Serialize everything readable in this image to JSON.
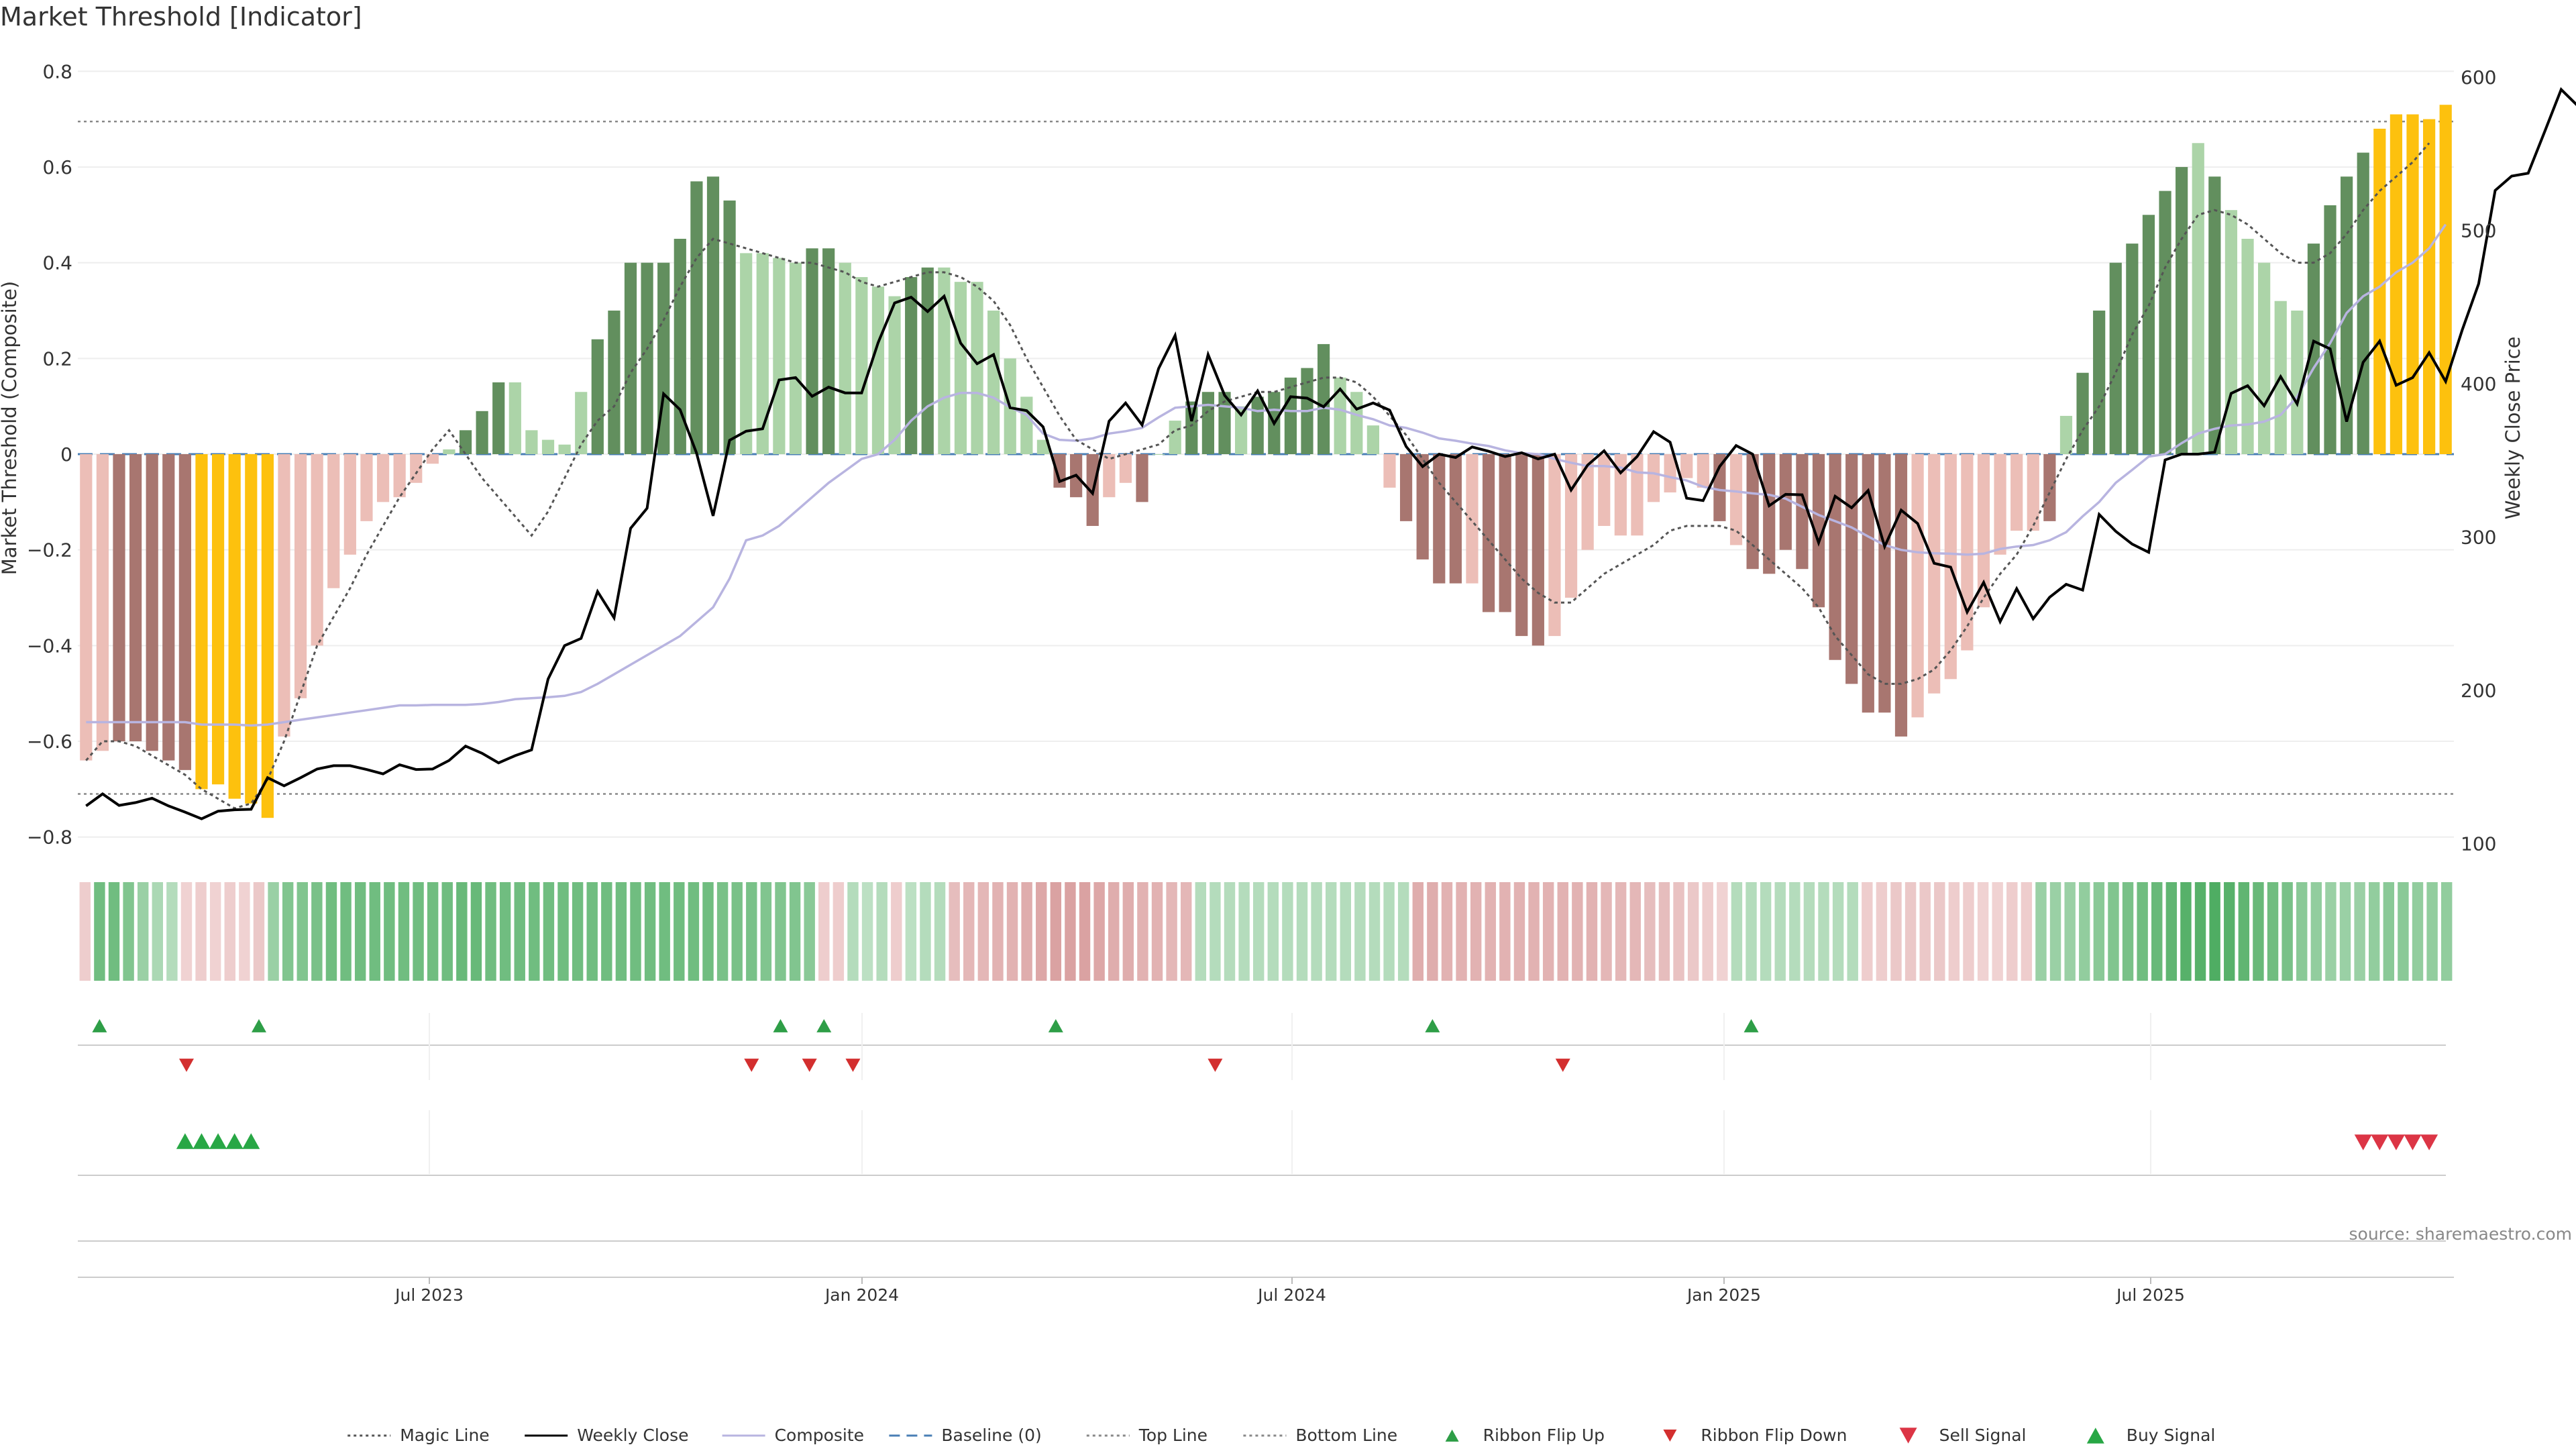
{
  "chart_data": {
    "type": "bar",
    "title": "Market Threshold [Indicator]",
    "ylabel": "Market Threshold (Composite)",
    "y2label": "Weekly Close Price",
    "ylim": [
      -0.82,
      0.82
    ],
    "y2lim": [
      98,
      610
    ],
    "yticks": [
      "0.8",
      "0.6",
      "0.4",
      "0.2",
      "0",
      "−0.2",
      "−0.4",
      "−0.6",
      "−0.8"
    ],
    "y2ticks": [
      "600",
      "500",
      "400",
      "300",
      "200",
      "100"
    ],
    "xticks": [
      "Jul 2023",
      "Jan 2024",
      "Jul 2024",
      "Jan 2025",
      "Jul 2025"
    ],
    "source": "source: sharemaestro.com",
    "top_line": 0.695,
    "bottom_line": -0.71,
    "grid": true,
    "legend_position": "bottom-center",
    "legend": [
      {
        "label": "Magic Line",
        "kind": "dotted-line",
        "color": "#555555"
      },
      {
        "label": "Weekly Close",
        "kind": "solid-line",
        "color": "#000000"
      },
      {
        "label": "Composite",
        "kind": "solid-line",
        "color": "#b8b4e0"
      },
      {
        "label": "Baseline (0)",
        "kind": "dashed-line",
        "color": "#4a7fb5"
      },
      {
        "label": "Top Line",
        "kind": "dotted-line",
        "color": "#888888"
      },
      {
        "label": "Bottom Line",
        "kind": "dotted-line",
        "color": "#888888"
      },
      {
        "label": "Ribbon Flip Up",
        "kind": "triangle-up",
        "color": "#2e9e47"
      },
      {
        "label": "Ribbon Flip Down",
        "kind": "triangle-down",
        "color": "#d32f2f"
      },
      {
        "label": "Sell Signal",
        "kind": "triangle-down-large",
        "color": "#dc3545"
      },
      {
        "label": "Buy Signal",
        "kind": "triangle-up-large",
        "color": "#28a745"
      }
    ],
    "colors": {
      "pos_strong": "#628f5e",
      "pos_light": "#acd4a8",
      "neg_strong": "#a87670",
      "neg_light": "#ecbeb7",
      "extreme": "#fdc10e",
      "composite": "#b8b4e0",
      "close": "#000000",
      "magic": "#555555",
      "baseline": "#4a7fb5"
    },
    "series": [
      {
        "name": "Market Threshold",
        "values": [
          -0.64,
          -0.62,
          -0.6,
          -0.6,
          -0.62,
          -0.64,
          -0.66,
          -0.7,
          -0.69,
          -0.72,
          -0.73,
          -0.76,
          -0.59,
          -0.51,
          -0.4,
          -0.28,
          -0.21,
          -0.14,
          -0.1,
          -0.09,
          -0.06,
          -0.02,
          0.01,
          0.05,
          0.09,
          0.15,
          0.15,
          0.05,
          0.03,
          0.02,
          0.13,
          0.24,
          0.3,
          0.4,
          0.4,
          0.4,
          0.45,
          0.57,
          0.58,
          0.53,
          0.42,
          0.42,
          0.41,
          0.4,
          0.43,
          0.43,
          0.4,
          0.37,
          0.35,
          0.33,
          0.37,
          0.39,
          0.39,
          0.36,
          0.36,
          0.3,
          0.2,
          0.12,
          0.03,
          -0.07,
          -0.09,
          -0.15,
          -0.09,
          -0.06,
          -0.1,
          0.0,
          0.07,
          0.11,
          0.13,
          0.13,
          0.1,
          0.12,
          0.13,
          0.16,
          0.18,
          0.23,
          0.16,
          0.13,
          0.06,
          -0.07,
          -0.14,
          -0.22,
          -0.27,
          -0.27,
          -0.27,
          -0.33,
          -0.33,
          -0.38,
          -0.4,
          -0.38,
          -0.3,
          -0.2,
          -0.15,
          -0.17,
          -0.17,
          -0.1,
          -0.08,
          -0.05,
          -0.07,
          -0.14,
          -0.19,
          -0.24,
          -0.25,
          -0.2,
          -0.24,
          -0.32,
          -0.43,
          -0.48,
          -0.54,
          -0.54,
          -0.59,
          -0.55,
          -0.5,
          -0.47,
          -0.41,
          -0.32,
          -0.21,
          -0.16,
          -0.16,
          -0.14,
          0.08,
          0.17,
          0.3,
          0.4,
          0.44,
          0.5,
          0.55,
          0.6,
          0.65,
          0.58,
          0.51,
          0.45,
          0.4,
          0.32,
          0.3,
          0.44,
          0.52,
          0.58,
          0.63,
          0.68,
          0.71,
          0.71,
          0.7,
          0.73
        ]
      },
      {
        "name": "Weekly Close",
        "values": [
          -0.735,
          -0.71,
          -0.734,
          -0.728,
          -0.719,
          -0.735,
          -0.748,
          -0.762,
          -0.746,
          -0.743,
          -0.742,
          -0.676,
          -0.693,
          -0.676,
          -0.658,
          -0.651,
          -0.651,
          -0.659,
          -0.668,
          -0.649,
          -0.659,
          -0.658,
          -0.64,
          -0.61,
          -0.625,
          -0.645,
          -0.63,
          -0.618,
          -0.47,
          -0.4,
          -0.385,
          -0.287,
          -0.342,
          -0.155,
          -0.113,
          0.126,
          0.093,
          0.002,
          -0.129,
          0.029,
          0.048,
          0.053,
          0.155,
          0.16,
          0.121,
          0.14,
          0.128,
          0.128,
          0.233,
          0.316,
          0.328,
          0.298,
          0.33,
          0.232,
          0.189,
          0.208,
          0.097,
          0.091,
          0.057,
          -0.057,
          -0.044,
          -0.082,
          0.069,
          0.107,
          0.061,
          0.179,
          0.248,
          0.069,
          0.208,
          0.123,
          0.082,
          0.132,
          0.064,
          0.12,
          0.117,
          0.099,
          0.136,
          0.094,
          0.107,
          0.092,
          0.016,
          -0.026,
          0.0,
          -0.007,
          0.015,
          0.006,
          -0.005,
          0.003,
          -0.01,
          0.0,
          -0.075,
          -0.023,
          0.007,
          -0.039,
          -0.005,
          0.047,
          0.025,
          -0.092,
          -0.097,
          -0.026,
          0.018,
          0.0,
          -0.108,
          -0.084,
          -0.085,
          -0.185,
          -0.088,
          -0.112,
          -0.076,
          -0.193,
          -0.117,
          -0.145,
          -0.228,
          -0.236,
          -0.33,
          -0.268,
          -0.35,
          -0.281,
          -0.344,
          -0.299,
          -0.272,
          -0.284,
          -0.126,
          -0.161,
          -0.188,
          -0.205,
          -0.012,
          0.0,
          0.0,
          0.004,
          0.127,
          0.143,
          0.101,
          0.162,
          0.105,
          0.236,
          0.22,
          0.068,
          0.192,
          0.236,
          0.144,
          0.16,
          0.212,
          0.152,
          0.259,
          0.356,
          0.551,
          0.581,
          0.587,
          0.674,
          0.762,
          0.728,
          0.734,
          0.725,
          0.702,
          0.733
        ]
      },
      {
        "name": "Magic Line",
        "values": [
          -0.64,
          -0.6,
          -0.6,
          -0.61,
          -0.63,
          -0.65,
          -0.67,
          -0.7,
          -0.72,
          -0.74,
          -0.73,
          -0.68,
          -0.6,
          -0.5,
          -0.4,
          -0.34,
          -0.28,
          -0.21,
          -0.15,
          -0.09,
          -0.04,
          0.01,
          0.05,
          0.0,
          -0.05,
          -0.09,
          -0.13,
          -0.17,
          -0.12,
          -0.05,
          0.02,
          0.07,
          0.1,
          0.17,
          0.22,
          0.28,
          0.35,
          0.41,
          0.45,
          0.44,
          0.43,
          0.42,
          0.41,
          0.4,
          0.4,
          0.39,
          0.38,
          0.36,
          0.35,
          0.36,
          0.37,
          0.38,
          0.38,
          0.37,
          0.35,
          0.32,
          0.27,
          0.2,
          0.14,
          0.08,
          0.03,
          0.01,
          -0.01,
          0.0,
          0.01,
          0.02,
          0.05,
          0.06,
          0.09,
          0.11,
          0.12,
          0.13,
          0.13,
          0.14,
          0.15,
          0.16,
          0.16,
          0.15,
          0.12,
          0.08,
          0.04,
          -0.01,
          -0.06,
          -0.1,
          -0.14,
          -0.18,
          -0.22,
          -0.26,
          -0.29,
          -0.31,
          -0.31,
          -0.28,
          -0.25,
          -0.23,
          -0.21,
          -0.19,
          -0.16,
          -0.15,
          -0.15,
          -0.15,
          -0.16,
          -0.19,
          -0.22,
          -0.25,
          -0.28,
          -0.32,
          -0.38,
          -0.42,
          -0.46,
          -0.48,
          -0.48,
          -0.47,
          -0.45,
          -0.41,
          -0.36,
          -0.3,
          -0.25,
          -0.21,
          -0.15,
          -0.08,
          -0.01,
          0.05,
          0.1,
          0.17,
          0.25,
          0.31,
          0.39,
          0.45,
          0.5,
          0.51,
          0.5,
          0.48,
          0.45,
          0.42,
          0.4,
          0.4,
          0.42,
          0.46,
          0.51,
          0.55,
          0.58,
          0.61,
          0.65
        ]
      },
      {
        "name": "Composite",
        "values": [
          -0.56,
          -0.56,
          -0.56,
          -0.56,
          -0.56,
          -0.56,
          -0.56,
          -0.565,
          -0.565,
          -0.565,
          -0.567,
          -0.565,
          -0.56,
          -0.555,
          -0.55,
          -0.545,
          -0.54,
          -0.535,
          -0.53,
          -0.525,
          -0.525,
          -0.524,
          -0.524,
          -0.524,
          -0.522,
          -0.518,
          -0.512,
          -0.51,
          -0.508,
          -0.505,
          -0.497,
          -0.48,
          -0.46,
          -0.44,
          -0.42,
          -0.4,
          -0.38,
          -0.35,
          -0.32,
          -0.26,
          -0.18,
          -0.17,
          -0.15,
          -0.12,
          -0.09,
          -0.06,
          -0.035,
          -0.01,
          0.0,
          0.03,
          0.07,
          0.1,
          0.118,
          0.128,
          0.128,
          0.118,
          0.098,
          0.082,
          0.043,
          0.03,
          0.028,
          0.033,
          0.043,
          0.048,
          0.055,
          0.077,
          0.097,
          0.1,
          0.103,
          0.1,
          0.097,
          0.09,
          0.093,
          0.09,
          0.09,
          0.097,
          0.093,
          0.082,
          0.073,
          0.06,
          0.055,
          0.045,
          0.033,
          0.028,
          0.022,
          0.017,
          0.008,
          0.002,
          0.0,
          -0.01,
          -0.018,
          -0.025,
          -0.025,
          -0.028,
          -0.038,
          -0.04,
          -0.048,
          -0.055,
          -0.068,
          -0.075,
          -0.078,
          -0.082,
          -0.085,
          -0.093,
          -0.11,
          -0.127,
          -0.14,
          -0.153,
          -0.172,
          -0.19,
          -0.2,
          -0.205,
          -0.207,
          -0.208,
          -0.21,
          -0.208,
          -0.198,
          -0.193,
          -0.19,
          -0.18,
          -0.163,
          -0.13,
          -0.1,
          -0.06,
          -0.033,
          -0.005,
          0.0,
          0.023,
          0.043,
          0.053,
          0.06,
          0.062,
          0.068,
          0.082,
          0.12,
          0.18,
          0.232,
          0.295,
          0.33,
          0.35,
          0.38,
          0.4,
          0.43,
          0.48
        ]
      }
    ],
    "flags": [
      2,
      2,
      1,
      1,
      1,
      1,
      1,
      3,
      3,
      3,
      3,
      3,
      2,
      2,
      2,
      2,
      2,
      2,
      2,
      2,
      2,
      2,
      2,
      1,
      1,
      1,
      0,
      0,
      0,
      0,
      0,
      1,
      1,
      1,
      1,
      1,
      1,
      1,
      1,
      1,
      0,
      0,
      0,
      0,
      1,
      1,
      0,
      0,
      0,
      0,
      1,
      1,
      0,
      0,
      0,
      0,
      0,
      0,
      0,
      1,
      1,
      1,
      0,
      0,
      1,
      0,
      0,
      1,
      1,
      1,
      0,
      1,
      1,
      1,
      1,
      1,
      0,
      0,
      0,
      2,
      1,
      1,
      1,
      1,
      2,
      1,
      1,
      1,
      1,
      2,
      2,
      2,
      2,
      2,
      2,
      2,
      2,
      2,
      2,
      1,
      2,
      1,
      1,
      1,
      1,
      1,
      1,
      1,
      1,
      1,
      1,
      2,
      2,
      2,
      2,
      2,
      2,
      2,
      2,
      1,
      0,
      1,
      1,
      1,
      1,
      1,
      1,
      1,
      0,
      1,
      0,
      0,
      0,
      0,
      0,
      1,
      1,
      1,
      1,
      3,
      3,
      3,
      3,
      3,
      3
    ],
    "ribbon": [
      -0.25,
      0.7,
      0.7,
      0.6,
      0.45,
      0.35,
      0.3,
      -0.2,
      -0.25,
      -0.2,
      -0.25,
      -0.2,
      -0.3,
      0.45,
      0.6,
      0.6,
      0.65,
      0.7,
      0.7,
      0.7,
      0.7,
      0.7,
      0.7,
      0.7,
      0.7,
      0.7,
      0.75,
      0.75,
      0.7,
      0.7,
      0.7,
      0.7,
      0.7,
      0.7,
      0.7,
      0.7,
      0.7,
      0.7,
      0.7,
      0.7,
      0.7,
      0.7,
      0.7,
      0.7,
      0.65,
      0.65,
      0.65,
      0.6,
      0.6,
      0.6,
      0.55,
      -0.25,
      -0.25,
      0.3,
      0.25,
      0.3,
      -0.25,
      0.25,
      0.3,
      0.3,
      -0.4,
      -0.45,
      -0.45,
      -0.5,
      -0.5,
      -0.55,
      -0.6,
      -0.65,
      -0.65,
      -0.65,
      -0.6,
      -0.55,
      -0.55,
      -0.5,
      -0.5,
      -0.45,
      -0.45,
      0.3,
      0.3,
      0.3,
      0.3,
      0.3,
      0.3,
      0.3,
      0.3,
      0.3,
      0.3,
      0.3,
      0.3,
      0.3,
      0.3,
      0.3,
      -0.55,
      -0.55,
      -0.5,
      -0.5,
      -0.5,
      -0.5,
      -0.5,
      -0.5,
      -0.5,
      -0.5,
      -0.5,
      -0.5,
      -0.5,
      -0.45,
      -0.45,
      -0.45,
      -0.4,
      -0.4,
      -0.35,
      -0.3,
      -0.25,
      -0.2,
      0.3,
      0.3,
      0.3,
      0.3,
      0.3,
      0.3,
      0.3,
      0.3,
      0.3,
      -0.25,
      -0.25,
      -0.3,
      -0.3,
      -0.3,
      -0.3,
      -0.25,
      -0.25,
      -0.2,
      -0.2,
      -0.25,
      -0.25,
      0.45,
      0.45,
      0.45,
      0.5,
      0.55,
      0.6,
      0.65,
      0.7,
      0.75,
      0.8,
      0.85,
      0.85,
      0.9,
      0.85,
      0.8,
      0.75,
      0.7,
      0.65,
      0.55,
      0.5,
      0.45,
      0.45,
      0.45,
      0.5,
      0.55,
      0.55,
      0.5,
      0.5,
      0.5
    ],
    "ribbon_flip_up_idx": [
      1,
      12,
      48,
      51,
      67,
      93,
      115
    ],
    "ribbon_flip_down_idx": [
      7,
      46,
      50,
      53,
      78,
      102
    ],
    "buy_signal_idx": [
      6,
      7,
      8,
      9,
      10
    ],
    "sell_signal_idx": [
      138,
      139,
      140,
      141,
      142
    ]
  }
}
